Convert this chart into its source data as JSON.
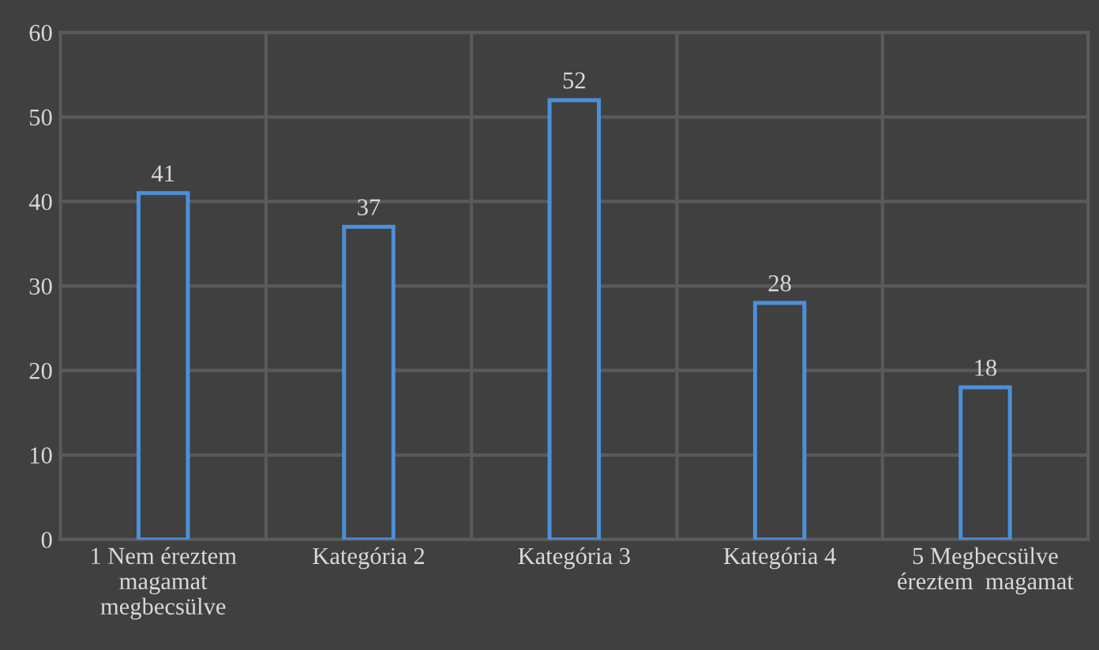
{
  "chart_data": {
    "type": "bar",
    "categories": [
      "1 Nem éreztem\nmagamat\nmegbecsülve",
      "Kategória 2",
      "Kategória 3",
      "Kategória 4",
      "5 Megbecsülve\néreztem  magamat"
    ],
    "values": [
      41,
      37,
      52,
      28,
      18
    ],
    "color": "#4a90d9",
    "ylim": [
      0,
      60
    ],
    "yticks": [
      0,
      10,
      20,
      30,
      40,
      50,
      60
    ],
    "grid": true,
    "data_labels": true
  }
}
